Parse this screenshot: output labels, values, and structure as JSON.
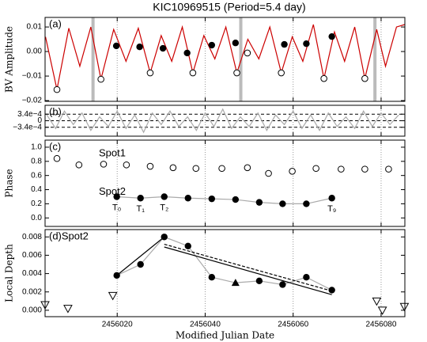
{
  "chart_data": [
    {
      "type": "line",
      "panel_label": "(a)",
      "title": "KIC10969515 (Period=5.4 day)",
      "ylabel": "BV Amplitude",
      "xlim": [
        2456003.6,
        2456085.4
      ],
      "xticks": [
        2456020,
        2456040,
        2456060,
        2456080
      ],
      "xgrid": true,
      "ylim": [
        -0.0203,
        0.0139
      ],
      "yticks": [
        0.01,
        {
          "value": 0,
          "label": "0.00"
        },
        {
          "value": -0.01,
          "label": "−0.01"
        },
        {
          "value": -0.02,
          "label": "−0.02"
        }
      ],
      "bands": [
        2456014.5,
        2456048.1,
        2456078.6
      ],
      "band_color": "#bbbbbb",
      "series": [
        {
          "color": "#cc0000",
          "line": true,
          "marker": "none",
          "x": [
            2456003.7,
            2456006.3,
            2456009.0,
            2456011.5,
            2456014.0,
            2456016.3,
            2456019.2,
            2456022.0,
            2456024.8,
            2456027.5,
            2456030.0,
            2456032.4,
            2456034.8,
            2456037.2,
            2456039.7,
            2456042.2,
            2456044.7,
            2456047.2,
            2456049.7,
            2456052.2,
            2456054.7,
            2456057.3,
            2456059.8,
            2456062.2,
            2456064.6,
            2456067.0,
            2456069.4,
            2456071.7,
            2456074.0,
            2456076.3,
            2456079.0,
            2456081.0,
            2456083.5,
            2456085.4
          ],
          "values": [
            0.006,
            -0.0155,
            0.0095,
            -0.006,
            0.01,
            -0.0113,
            0.009,
            -0.004,
            0.0095,
            -0.0087,
            0.0065,
            -0.004,
            0.01,
            -0.0087,
            0.0065,
            -0.003,
            0.01,
            -0.0087,
            0.005,
            -0.003,
            0.01,
            -0.0087,
            0.006,
            -0.004,
            0.011,
            -0.011,
            0.008,
            -0.004,
            0.01,
            -0.011,
            0.009,
            -0.006,
            0.01,
            0.011
          ]
        },
        {
          "color": "#000000",
          "line": false,
          "marker": "open-circle",
          "x": [
            2456006.3,
            2456016.3,
            2456027.5,
            2456037.2,
            2456047.2,
            2456057.3,
            2456067.0,
            2456076.3,
            2456049.6
          ],
          "values": [
            -0.0155,
            -0.0113,
            -0.0087,
            -0.0087,
            -0.0087,
            -0.0087,
            -0.011,
            -0.011,
            -0.0006
          ]
        },
        {
          "color": "#000000",
          "line": false,
          "marker": "filled-circle",
          "x": [
            2456019.8,
            2456025.1,
            2456030.4,
            2456035.9,
            2456041.5,
            2456046.9,
            2456058.0,
            2456063.0,
            2456068.8
          ],
          "values": [
            0.0023,
            0.0019,
            0.0013,
            -0.0006,
            0.0026,
            0.0035,
            0.0029,
            0.0032,
            0.0061
          ]
        }
      ]
    },
    {
      "type": "line",
      "panel_label": "(b)",
      "xlim": [
        2456003.6,
        2456085.4
      ],
      "xticks": [
        2456020,
        2456040,
        2456060,
        2456080
      ],
      "xgrid": true,
      "ylim": [
        -0.0008,
        0.0008
      ],
      "yticks": [
        {
          "value": 0.00034,
          "label": "3.4e−4"
        },
        0,
        {
          "value": -0.00034,
          "label": "−3.4e−4"
        }
      ],
      "ygrid": "dashed",
      "series": [
        {
          "color": "#aaaaaa",
          "line": true,
          "marker": "none",
          "x": [
            2456004,
            2456006,
            2456008,
            2456010,
            2456012,
            2456014,
            2456016,
            2456018,
            2456020,
            2456022,
            2456024,
            2456026,
            2456028,
            2456030,
            2456032,
            2456034,
            2456036,
            2456038,
            2456040,
            2456042,
            2456044,
            2456046,
            2456048,
            2456050,
            2456052,
            2456054,
            2456056,
            2456058,
            2456060,
            2456062,
            2456064,
            2456066,
            2456068,
            2456070,
            2456072,
            2456074,
            2456076,
            2456078,
            2456080,
            2456082,
            2456084
          ],
          "values": [
            0.0003,
            -0.0004,
            0.0005,
            -0.0002,
            0.0004,
            -0.0005,
            0.0002,
            -0.0003,
            0.0005,
            -0.0004,
            0.0003,
            -0.0006,
            0.0004,
            -0.0002,
            0.0005,
            -0.0003,
            0.0002,
            -0.0005,
            0.0004,
            -0.0003,
            0.0006,
            -0.0004,
            0.0002,
            -0.0003,
            0.0004,
            -0.0005,
            0.0003,
            -0.0002,
            0.0005,
            -0.0004,
            0.0003,
            -0.0005,
            0.0004,
            -0.0003,
            0.0002,
            -0.0004,
            0.0005,
            -0.0003,
            0.0004,
            -0.0002,
            0.0003
          ]
        }
      ]
    },
    {
      "type": "scatter",
      "panel_label": "(c)",
      "ylabel": "Phase",
      "xlim": [
        2456003.6,
        2456085.4
      ],
      "xticks": [
        2456020,
        2456040,
        2456060,
        2456080
      ],
      "xgrid": true,
      "ylim": [
        -0.12,
        1.1
      ],
      "yticks": [
        {
          "value": 1,
          "label": "1.0"
        },
        0.8,
        0.6,
        0.4,
        0.2,
        {
          "value": 0,
          "label": "0.0"
        }
      ],
      "series": [
        {
          "name": "Spot1",
          "color": "#000000",
          "line": false,
          "marker": "open-circle",
          "x": [
            2456006.3,
            2456011.3,
            2456016.9,
            2456022.1,
            2456027.5,
            2456032.7,
            2456037.9,
            2456043.8,
            2456049.6,
            2456054.4,
            2456059.8,
            2456065.2,
            2456070.9,
            2456076.3,
            2456081.7
          ],
          "values": [
            0.84,
            0.75,
            0.76,
            0.75,
            0.73,
            0.71,
            0.7,
            0.7,
            0.71,
            0.63,
            0.66,
            0.7,
            0.69,
            0.69,
            0.69
          ]
        },
        {
          "name": "Spot2",
          "color": "#000000",
          "line": true,
          "line_color": "#aaaaaa",
          "marker": "filled-circle",
          "x": [
            2456019.9,
            2456025.3,
            2456030.7,
            2456036.1,
            2456041.5,
            2456046.9,
            2456052.3,
            2456057.6,
            2456063.0,
            2456068.8
          ],
          "values": [
            0.3,
            0.28,
            0.3,
            0.28,
            0.27,
            0.26,
            0.22,
            0.2,
            0.2,
            0.28
          ],
          "point_labels": [
            "T₀",
            "T₁",
            "T₂",
            null,
            null,
            null,
            null,
            null,
            null,
            "T₉"
          ]
        }
      ]
    },
    {
      "type": "scatter",
      "panel_label": "(d)Spot2",
      "ylabel": "Local Depth",
      "xlabel": "Modified Julian Date",
      "xlim": [
        2456003.6,
        2456085.4
      ],
      "xticks": [
        2456020,
        2456040,
        2456060,
        2456080
      ],
      "xgrid": true,
      "ylim": [
        -0.0007,
        0.0088
      ],
      "yticks": [
        0.008,
        0.006,
        0.004,
        0.002,
        {
          "value": 0,
          "label": "0.000"
        }
      ],
      "series": [
        {
          "color": "#000000",
          "line": true,
          "line_color": "#aaaaaa",
          "marker": "filled-circle",
          "markers": [
            "filled-circle",
            "filled-circle",
            "filled-circle",
            "filled-circle",
            "filled-circle",
            "filled-triangle",
            "filled-circle",
            "filled-circle",
            "filled-circle",
            "filled-circle"
          ],
          "x": [
            2456019.9,
            2456025.3,
            2456030.7,
            2456036.1,
            2456041.5,
            2456046.9,
            2456052.3,
            2456057.6,
            2456063.0,
            2456068.8
          ],
          "values": [
            0.0038,
            0.005,
            0.008,
            0.007,
            0.0036,
            0.003,
            0.0032,
            0.0028,
            0.0036,
            0.0022
          ]
        },
        {
          "color": "#000000",
          "line": false,
          "marker": "open-triangle-down",
          "x": [
            2456003.6,
            2456008.8,
            2456019.0,
            2456079.0,
            2456080.3,
            2456085.3
          ],
          "values": [
            0.0006,
            0.0002,
            0.0016,
            0.001,
            0,
            0.0004
          ]
        },
        {
          "color": "#000000",
          "line": true,
          "marker": "none",
          "x": [
            2456019.9,
            2456030.7
          ],
          "values": [
            0.0038,
            0.008
          ]
        },
        {
          "color": "#000000",
          "line": true,
          "marker": "none",
          "x": [
            2456030.7,
            2456068.8
          ],
          "values": [
            0.0069,
            0.0017
          ]
        },
        {
          "color": "#000000",
          "line": true,
          "dashed": true,
          "marker": "none",
          "x": [
            2456030.7,
            2456068.8
          ],
          "values": [
            0.0072,
            0.0021
          ]
        }
      ]
    }
  ]
}
